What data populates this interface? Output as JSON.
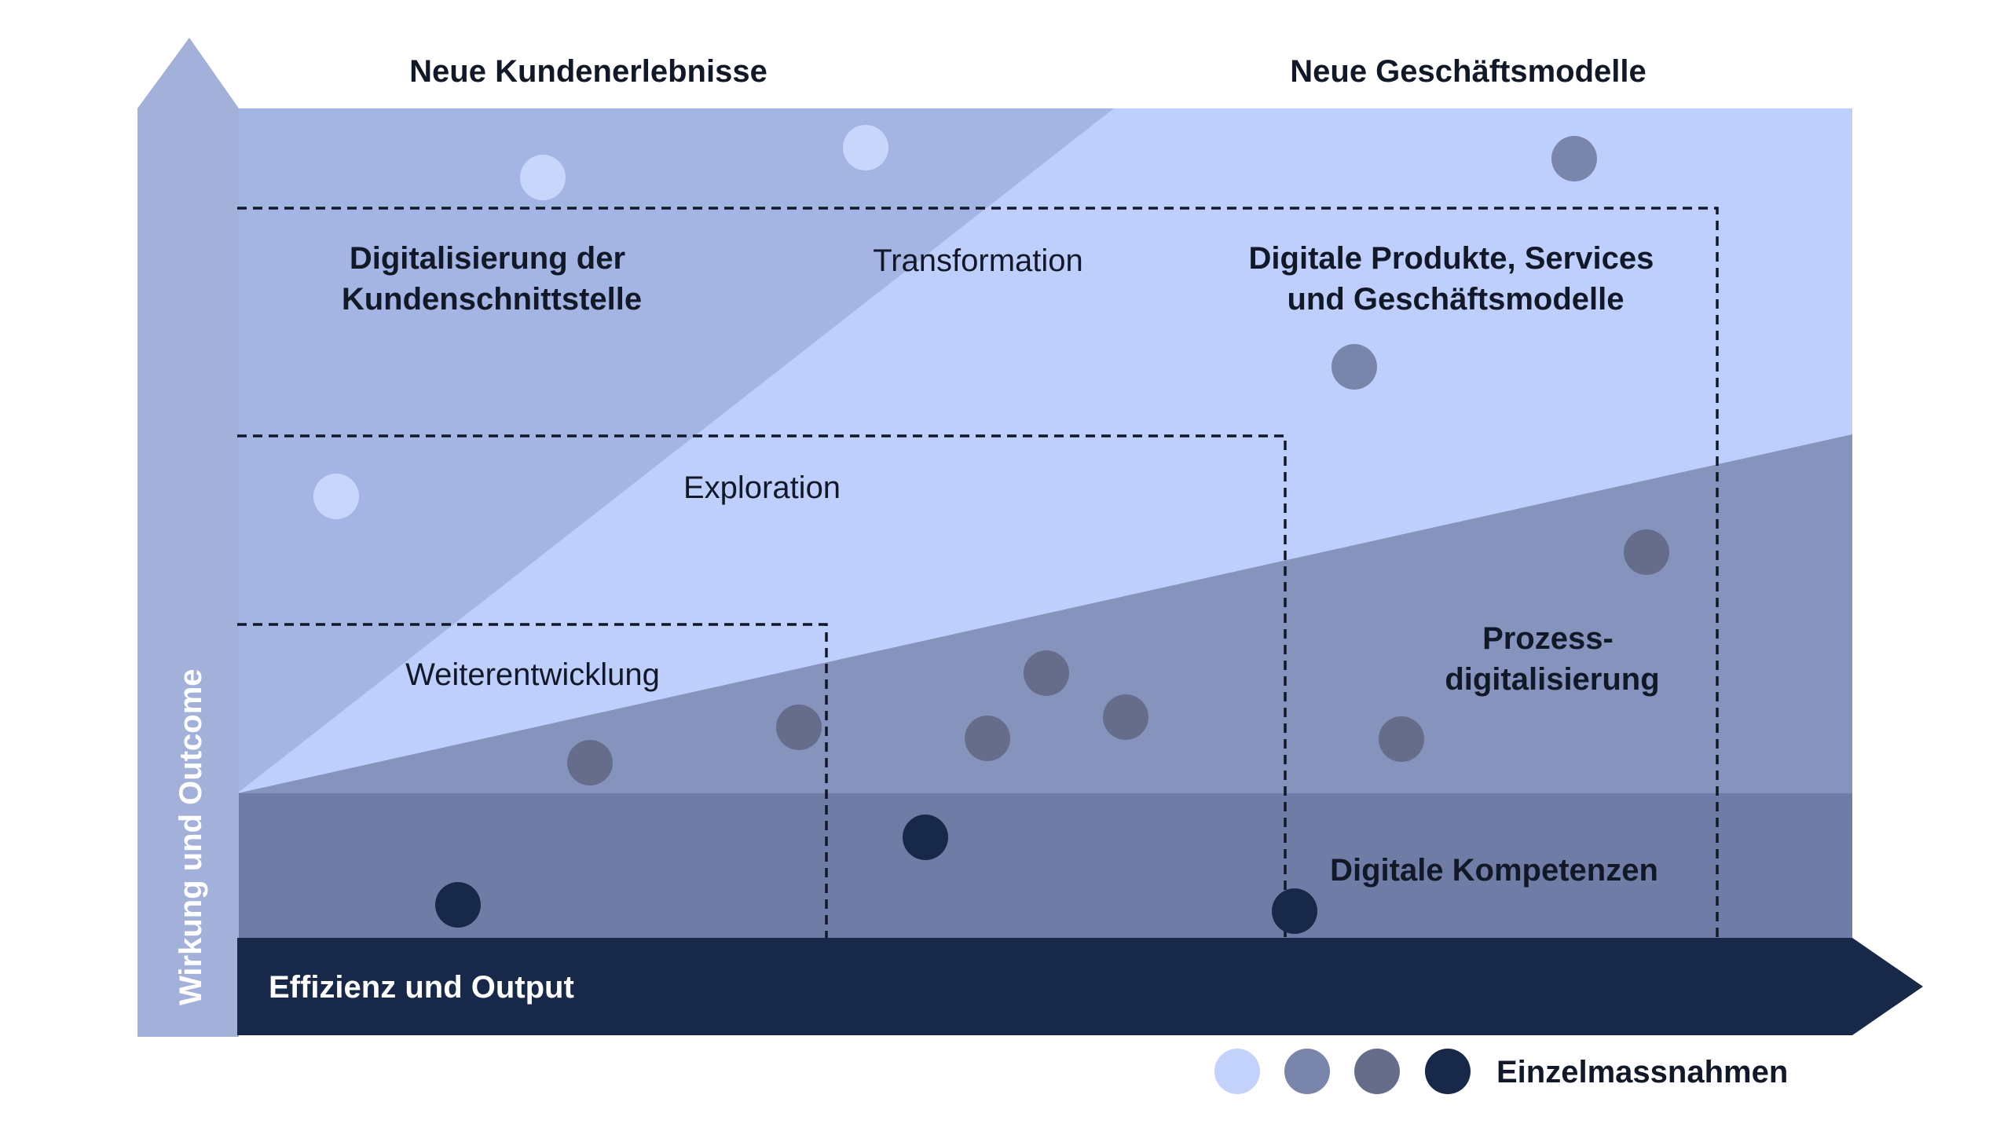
{
  "headers": {
    "left": "Neue Kundenerlebnisse",
    "right": "Neue Geschäftsmodelle"
  },
  "axes": {
    "y_label": "Wirkung und Outcome",
    "x_label": "Effizienz und Output"
  },
  "zones": {
    "customer_interface": [
      "Digitalisierung der",
      "Kundenschnittstelle"
    ],
    "transformation": "Transformation",
    "digital_products": [
      "Digitale Produkte, Services",
      "und Geschäftsmodelle"
    ],
    "exploration": "Exploration",
    "weiterentwicklung": "Weiterentwicklung",
    "process_digitalization": [
      "Prozess-",
      "digitalisierung"
    ],
    "digital_competencies": "Digitale Kompetenzen"
  },
  "legend": {
    "label": "Einzelmassnahmen",
    "swatches": [
      "#c3d2fb",
      "#7a85ab",
      "#656d8b",
      "#172849"
    ]
  },
  "colors": {
    "axis_left": "#a2b0da",
    "zone_upper_left": "#a4b4e3",
    "zone_light": "#bfcffd",
    "zone_mid": "#8593bd",
    "zone_low": "#6f7ca5",
    "axis_bottom": "#172849",
    "dot_light": "#c8d6fc",
    "dot_mid": "#7a85ab",
    "dot_grey": "#656d8b",
    "dot_dark": "#172849",
    "text_dark": "#111827",
    "text_light": "#ffffff"
  }
}
